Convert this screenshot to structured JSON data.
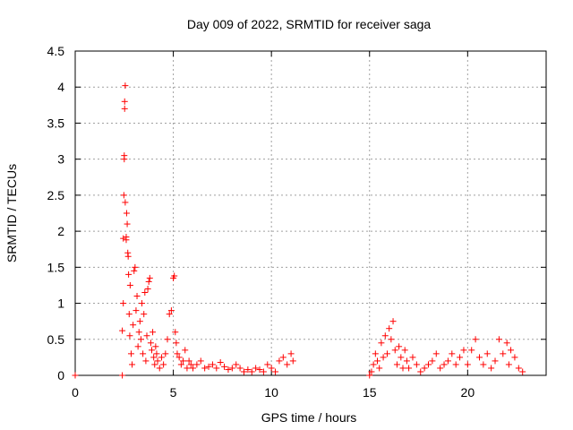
{
  "chart_data": {
    "type": "scatter",
    "title": "Day 009 of 2022, SRMTID for receiver saga",
    "xlabel": "GPS time / hours",
    "ylabel": "SRMTID / TECUs",
    "xlim": [
      0,
      24
    ],
    "ylim": [
      0,
      4.5
    ],
    "xticks": [
      "0",
      "5",
      "10",
      "15",
      "20"
    ],
    "yticks": [
      "0",
      "0.5",
      "1",
      "1.5",
      "2",
      "2.5",
      "3",
      "3.5",
      "4",
      "4.5"
    ],
    "grid": true,
    "marker": "plus",
    "color": "#ff0000",
    "series": [
      {
        "name": "saga",
        "points": [
          [
            0.0,
            0.0
          ],
          [
            2.4,
            0.0
          ],
          [
            2.4,
            0.62
          ],
          [
            2.45,
            1.0
          ],
          [
            2.45,
            1.9
          ],
          [
            2.48,
            2.5
          ],
          [
            2.5,
            3.0
          ],
          [
            2.5,
            3.05
          ],
          [
            2.52,
            3.7
          ],
          [
            2.52,
            3.8
          ],
          [
            2.55,
            4.02
          ],
          [
            2.55,
            2.4
          ],
          [
            2.6,
            1.92
          ],
          [
            2.6,
            1.88
          ],
          [
            2.62,
            2.25
          ],
          [
            2.65,
            2.1
          ],
          [
            2.68,
            1.7
          ],
          [
            2.7,
            1.65
          ],
          [
            2.72,
            1.4
          ],
          [
            2.75,
            0.85
          ],
          [
            2.78,
            0.55
          ],
          [
            2.8,
            1.25
          ],
          [
            2.85,
            0.3
          ],
          [
            2.9,
            0.15
          ],
          [
            2.95,
            0.7
          ],
          [
            3.0,
            1.45
          ],
          [
            3.05,
            1.5
          ],
          [
            3.1,
            0.9
          ],
          [
            3.15,
            1.1
          ],
          [
            3.2,
            0.4
          ],
          [
            3.25,
            0.6
          ],
          [
            3.3,
            0.75
          ],
          [
            3.35,
            0.5
          ],
          [
            3.4,
            1.0
          ],
          [
            3.45,
            0.3
          ],
          [
            3.5,
            0.85
          ],
          [
            3.55,
            1.15
          ],
          [
            3.6,
            0.2
          ],
          [
            3.65,
            0.55
          ],
          [
            3.7,
            1.2
          ],
          [
            3.75,
            1.3
          ],
          [
            3.8,
            1.35
          ],
          [
            3.85,
            0.45
          ],
          [
            3.9,
            0.35
          ],
          [
            3.95,
            0.6
          ],
          [
            4.0,
            0.25
          ],
          [
            4.05,
            0.15
          ],
          [
            4.1,
            0.4
          ],
          [
            4.15,
            0.3
          ],
          [
            4.2,
            0.2
          ],
          [
            4.3,
            0.1
          ],
          [
            4.4,
            0.25
          ],
          [
            4.5,
            0.15
          ],
          [
            4.6,
            0.3
          ],
          [
            4.7,
            0.5
          ],
          [
            4.8,
            0.85
          ],
          [
            4.9,
            0.9
          ],
          [
            5.0,
            1.35
          ],
          [
            5.05,
            1.38
          ],
          [
            5.1,
            0.6
          ],
          [
            5.15,
            0.45
          ],
          [
            5.2,
            0.3
          ],
          [
            5.3,
            0.25
          ],
          [
            5.4,
            0.15
          ],
          [
            5.5,
            0.2
          ],
          [
            5.6,
            0.35
          ],
          [
            5.7,
            0.1
          ],
          [
            5.8,
            0.2
          ],
          [
            5.9,
            0.15
          ],
          [
            6.0,
            0.1
          ],
          [
            6.2,
            0.15
          ],
          [
            6.4,
            0.2
          ],
          [
            6.6,
            0.1
          ],
          [
            6.8,
            0.12
          ],
          [
            7.0,
            0.15
          ],
          [
            7.2,
            0.1
          ],
          [
            7.4,
            0.18
          ],
          [
            7.6,
            0.12
          ],
          [
            7.8,
            0.08
          ],
          [
            8.0,
            0.1
          ],
          [
            8.2,
            0.15
          ],
          [
            8.4,
            0.1
          ],
          [
            8.6,
            0.05
          ],
          [
            8.8,
            0.08
          ],
          [
            9.0,
            0.05
          ],
          [
            9.2,
            0.1
          ],
          [
            9.4,
            0.08
          ],
          [
            9.6,
            0.05
          ],
          [
            9.8,
            0.15
          ],
          [
            10.0,
            0.1
          ],
          [
            10.2,
            0.05
          ],
          [
            10.4,
            0.2
          ],
          [
            10.6,
            0.25
          ],
          [
            10.8,
            0.15
          ],
          [
            11.0,
            0.3
          ],
          [
            11.1,
            0.2
          ],
          [
            15.0,
            0.0
          ],
          [
            15.1,
            0.05
          ],
          [
            15.2,
            0.15
          ],
          [
            15.3,
            0.3
          ],
          [
            15.4,
            0.2
          ],
          [
            15.5,
            0.1
          ],
          [
            15.6,
            0.45
          ],
          [
            15.7,
            0.25
          ],
          [
            15.8,
            0.55
          ],
          [
            15.9,
            0.3
          ],
          [
            16.0,
            0.65
          ],
          [
            16.1,
            0.5
          ],
          [
            16.2,
            0.75
          ],
          [
            16.3,
            0.35
          ],
          [
            16.4,
            0.15
          ],
          [
            16.5,
            0.4
          ],
          [
            16.6,
            0.25
          ],
          [
            16.7,
            0.1
          ],
          [
            16.8,
            0.35
          ],
          [
            16.9,
            0.2
          ],
          [
            17.0,
            0.1
          ],
          [
            17.2,
            0.25
          ],
          [
            17.4,
            0.15
          ],
          [
            17.6,
            0.05
          ],
          [
            17.8,
            0.1
          ],
          [
            18.0,
            0.15
          ],
          [
            18.2,
            0.2
          ],
          [
            18.4,
            0.3
          ],
          [
            18.6,
            0.1
          ],
          [
            18.8,
            0.15
          ],
          [
            19.0,
            0.2
          ],
          [
            19.2,
            0.3
          ],
          [
            19.4,
            0.15
          ],
          [
            19.6,
            0.25
          ],
          [
            19.8,
            0.35
          ],
          [
            20.0,
            0.15
          ],
          [
            20.2,
            0.35
          ],
          [
            20.4,
            0.5
          ],
          [
            20.6,
            0.25
          ],
          [
            20.8,
            0.15
          ],
          [
            21.0,
            0.3
          ],
          [
            21.2,
            0.1
          ],
          [
            21.4,
            0.2
          ],
          [
            21.6,
            0.5
          ],
          [
            21.8,
            0.3
          ],
          [
            22.0,
            0.45
          ],
          [
            22.1,
            0.15
          ],
          [
            22.2,
            0.35
          ],
          [
            22.4,
            0.25
          ],
          [
            22.6,
            0.1
          ],
          [
            22.8,
            0.05
          ]
        ]
      }
    ]
  }
}
